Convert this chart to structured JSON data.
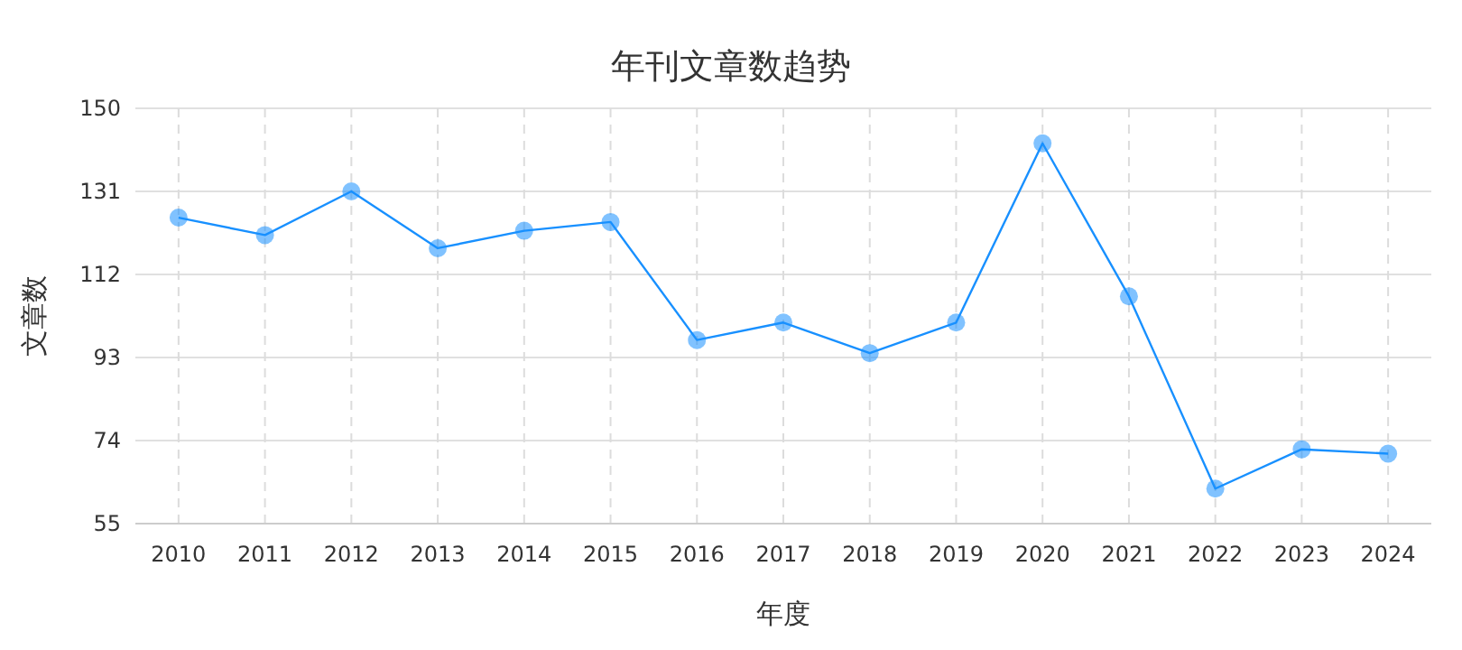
{
  "chart_data": {
    "type": "line",
    "title": "年刊文章数趋势",
    "xlabel": "年度",
    "ylabel": "文章数",
    "categories": [
      "2010",
      "2011",
      "2012",
      "2013",
      "2014",
      "2015",
      "2016",
      "2017",
      "2018",
      "2019",
      "2020",
      "2021",
      "2022",
      "2023",
      "2024"
    ],
    "series": [
      {
        "color": "#1890ff",
        "values": [
          125,
          121,
          131,
          118,
          122,
          124,
          97,
          101,
          94,
          101,
          142,
          107,
          63,
          72,
          71
        ]
      }
    ],
    "ylim": [
      55,
      150
    ],
    "yticks": [
      55,
      74,
      93,
      112,
      131,
      150
    ],
    "grid": true,
    "marker": "circle",
    "line_style": "solid"
  }
}
